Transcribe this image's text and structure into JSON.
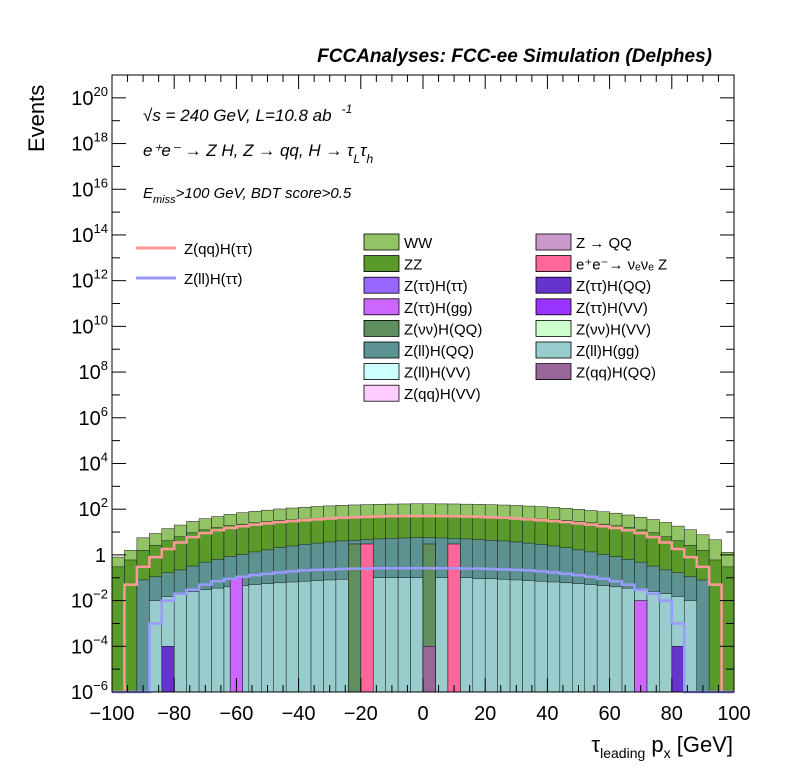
{
  "chart_data": {
    "type": "bar",
    "title": "FCCAnalyses: FCC-ee Simulation (Delphes)",
    "ylabel": "Events",
    "xlabel_main": "τ",
    "xlabel_sub": "leading",
    "xlabel_var": " p",
    "xlabel_varsub": "x",
    "xlabel_unit": " [GeV]",
    "xlim": [
      -100,
      100
    ],
    "ylim": [
      1e-06,
      1e+21
    ],
    "yscale": "log",
    "xticks": [
      -100,
      -80,
      -60,
      -40,
      -20,
      0,
      20,
      40,
      60,
      80,
      100
    ],
    "xtick_labels": [
      "−100",
      "−80",
      "−60",
      "−40",
      "−20",
      "0",
      "20",
      "40",
      "60",
      "80",
      "100"
    ],
    "yticks": [
      {
        "base": "10",
        "exp": "−6",
        "value": 1e-06
      },
      {
        "base": "10",
        "exp": "−4",
        "value": 0.0001
      },
      {
        "base": "10",
        "exp": "−2",
        "value": 0.01
      },
      {
        "base": "1",
        "exp": "",
        "value": 1
      },
      {
        "base": "10",
        "exp": "2",
        "value": 100.0
      },
      {
        "base": "10",
        "exp": "4",
        "value": 10000.0
      },
      {
        "base": "10",
        "exp": "6",
        "value": 1000000.0
      },
      {
        "base": "10",
        "exp": "8",
        "value": 100000000.0
      },
      {
        "base": "10",
        "exp": "10",
        "value": 10000000000.0
      },
      {
        "base": "10",
        "exp": "12",
        "value": 1000000000000.0
      },
      {
        "base": "10",
        "exp": "14",
        "value": 100000000000000.0
      },
      {
        "base": "10",
        "exp": "16",
        "value": 1e+16
      },
      {
        "base": "10",
        "exp": "18",
        "value": 1e+18
      },
      {
        "base": "10",
        "exp": "20",
        "value": 1e+20
      }
    ],
    "annotations": {
      "sqrt_s": "√s = 240 GeV, L=10.8 ab",
      "lumi_exp": "-1",
      "process": "e⁺e⁻ → Z H, Z → qq, H → τ",
      "process_sub1": "L",
      "process_tau2": "τ",
      "process_sub2": "h",
      "cut_E": "E",
      "cut_sub": "miss",
      "cut_rest": ">100 GeV, BDT score>0.5"
    },
    "stack_layers": [
      {
        "name": "WW",
        "color": "#92c466",
        "values": [
          0.5,
          1.0,
          4,
          6,
          10,
          14,
          20,
          26,
          32,
          40,
          48,
          55,
          62,
          70,
          78,
          85,
          92,
          98,
          104,
          108,
          112,
          116,
          118,
          120,
          122,
          122,
          121,
          120,
          118,
          116,
          112,
          108,
          104,
          98,
          92,
          85,
          78,
          70,
          62,
          55,
          48,
          40,
          32,
          26,
          20,
          14,
          10,
          6,
          4,
          1.0
        ]
      },
      {
        "name": "ZZ",
        "color": "#5a9a2a",
        "values": [
          0.3,
          0.6,
          1.5,
          2.5,
          4,
          6,
          9,
          12,
          15,
          18,
          21,
          24,
          27,
          30,
          32,
          34,
          36,
          38,
          40,
          41,
          42,
          43,
          44,
          44,
          45,
          45,
          44,
          44,
          43,
          42,
          41,
          40,
          38,
          36,
          34,
          32,
          30,
          27,
          24,
          21,
          18,
          15,
          12,
          9,
          6,
          4,
          2.5,
          1.5,
          0.6,
          0.3
        ]
      },
      {
        "name": "Z(ll)H(QQ)",
        "color": "#5c9292",
        "values": [
          0,
          0,
          0.08,
          0.1,
          0.15,
          0.2,
          0.3,
          0.45,
          0.6,
          0.8,
          1.0,
          1.3,
          1.6,
          2.0,
          2.4,
          2.8,
          3.2,
          3.6,
          4.0,
          4.3,
          4.6,
          4.9,
          5.2,
          5.4,
          5.6,
          5.6,
          5.4,
          5.2,
          4.9,
          4.6,
          4.3,
          4.0,
          3.6,
          3.2,
          2.8,
          2.4,
          2.0,
          1.6,
          1.3,
          1.0,
          0.8,
          0.6,
          0.45,
          0.3,
          0.2,
          0.15,
          0.1,
          0.08,
          0,
          0
        ]
      },
      {
        "name": "Z(ll)H(gg)",
        "color": "#99cccc",
        "values": [
          0,
          0,
          0,
          0.01,
          0.015,
          0.02,
          0.025,
          0.03,
          0.035,
          0.04,
          0.045,
          0.05,
          0.055,
          0.06,
          0.065,
          0.07,
          0.075,
          0.08,
          0.085,
          0.09,
          0.09,
          0.1,
          0.1,
          0.1,
          0.1,
          0.1,
          0.1,
          0.1,
          0.1,
          0.09,
          0.09,
          0.085,
          0.08,
          0.075,
          0.07,
          0.065,
          0.06,
          0.055,
          0.05,
          0.045,
          0.04,
          0.035,
          0.03,
          0.025,
          0.02,
          0.015,
          0.01,
          0,
          0,
          0
        ]
      }
    ],
    "sparse_bars": [
      {
        "name": "Z(ττ)H(gg)",
        "color": "#cc66ff",
        "x0": -62,
        "x1": -58,
        "value": 0.1
      },
      {
        "name": "Z(νν)H(QQ)",
        "color": "#5f8f5f",
        "x0": -24,
        "x1": -20,
        "value": 3
      },
      {
        "name": "Z(νν)H(QQ)",
        "color": "#5f8f5f",
        "x0": 0,
        "x1": 4,
        "value": 3
      },
      {
        "name": "e⁺e⁻→ ν_eν_e Z",
        "color": "#ff6699",
        "x0": -20,
        "x1": -16,
        "value": 3
      },
      {
        "name": "e⁺e⁻→ ν_eν_e Z",
        "color": "#ff6699",
        "x0": 8,
        "x1": 12,
        "value": 3
      },
      {
        "name": "Z(qq)H(QQ)",
        "color": "#996699",
        "x0": 0,
        "x1": 4,
        "value": 0.0001
      },
      {
        "name": "Z(ττ)H(QQ)",
        "color": "#6633cc",
        "x0": -84,
        "x1": -80,
        "value": 0.0001
      },
      {
        "name": "Z(ττ)H(QQ)",
        "color": "#6633cc",
        "x0": 80,
        "x1": 84,
        "value": 0.0001
      },
      {
        "name": "Z(ττ)H(gg)",
        "color": "#cc66ff",
        "x0": 68,
        "x1": 72,
        "value": 0.01
      }
    ],
    "lines": [
      {
        "name": "Z(qq)H(ττ)",
        "color": "#ff9999",
        "values": [
          5e-07,
          0.05,
          0.3,
          0.8,
          1.8,
          3.5,
          6,
          9,
          12,
          15,
          18,
          21,
          24,
          27,
          30,
          33,
          36,
          39,
          42,
          44,
          46,
          48,
          49,
          50,
          50,
          50,
          50,
          49,
          48,
          46,
          44,
          42,
          39,
          36,
          33,
          30,
          27,
          24,
          21,
          18,
          15,
          12,
          9,
          6,
          3.5,
          1.8,
          0.8,
          0.3,
          0.05,
          5e-07
        ]
      },
      {
        "name": "Z(ll)H(ττ)",
        "color": "#9999ff",
        "values": [
          5e-07,
          5e-07,
          5e-07,
          0.001,
          0.01,
          0.02,
          0.03,
          0.05,
          0.07,
          0.09,
          0.11,
          0.13,
          0.15,
          0.17,
          0.19,
          0.21,
          0.22,
          0.23,
          0.24,
          0.25,
          0.25,
          0.26,
          0.26,
          0.26,
          0.26,
          0.26,
          0.26,
          0.26,
          0.25,
          0.25,
          0.24,
          0.23,
          0.22,
          0.21,
          0.19,
          0.17,
          0.15,
          0.13,
          0.11,
          0.09,
          0.07,
          0.05,
          0.03,
          0.02,
          0.01,
          0.001,
          5e-07,
          5e-07,
          5e-07,
          5e-07
        ]
      }
    ],
    "legend_lines": [
      {
        "label": "Z(qq)H(ττ)",
        "color": "#ff9999"
      },
      {
        "label": "Z(ll)H(ττ)",
        "color": "#9999ff"
      }
    ],
    "legend_left": [
      {
        "label": "WW",
        "color": "#92c466"
      },
      {
        "label": "ZZ",
        "color": "#5a9a2a"
      },
      {
        "label": "Z(ττ)H(ττ)",
        "color": "#9966ff"
      },
      {
        "label": "Z(ττ)H(gg)",
        "color": "#cc66ff"
      },
      {
        "label": "Z(νν)H(QQ)",
        "color": "#5f8f5f"
      },
      {
        "label": "Z(ll)H(QQ)",
        "color": "#5c9292"
      },
      {
        "label": "Z(ll)H(VV)",
        "color": "#ccffff"
      },
      {
        "label": "Z(qq)H(VV)",
        "color": "#ffccff"
      }
    ],
    "legend_right": [
      {
        "label": "Z → QQ",
        "color": "#cc99cc"
      },
      {
        "label": "e⁺e⁻→ νₑνₑ Z",
        "color": "#ff6699"
      },
      {
        "label": "Z(ττ)H(QQ)",
        "color": "#6633cc"
      },
      {
        "label": "Z(ττ)H(VV)",
        "color": "#9933ff"
      },
      {
        "label": "Z(νν)H(VV)",
        "color": "#ccffcc"
      },
      {
        "label": "Z(ll)H(gg)",
        "color": "#99cccc"
      },
      {
        "label": "Z(qq)H(QQ)",
        "color": "#996699"
      }
    ]
  }
}
